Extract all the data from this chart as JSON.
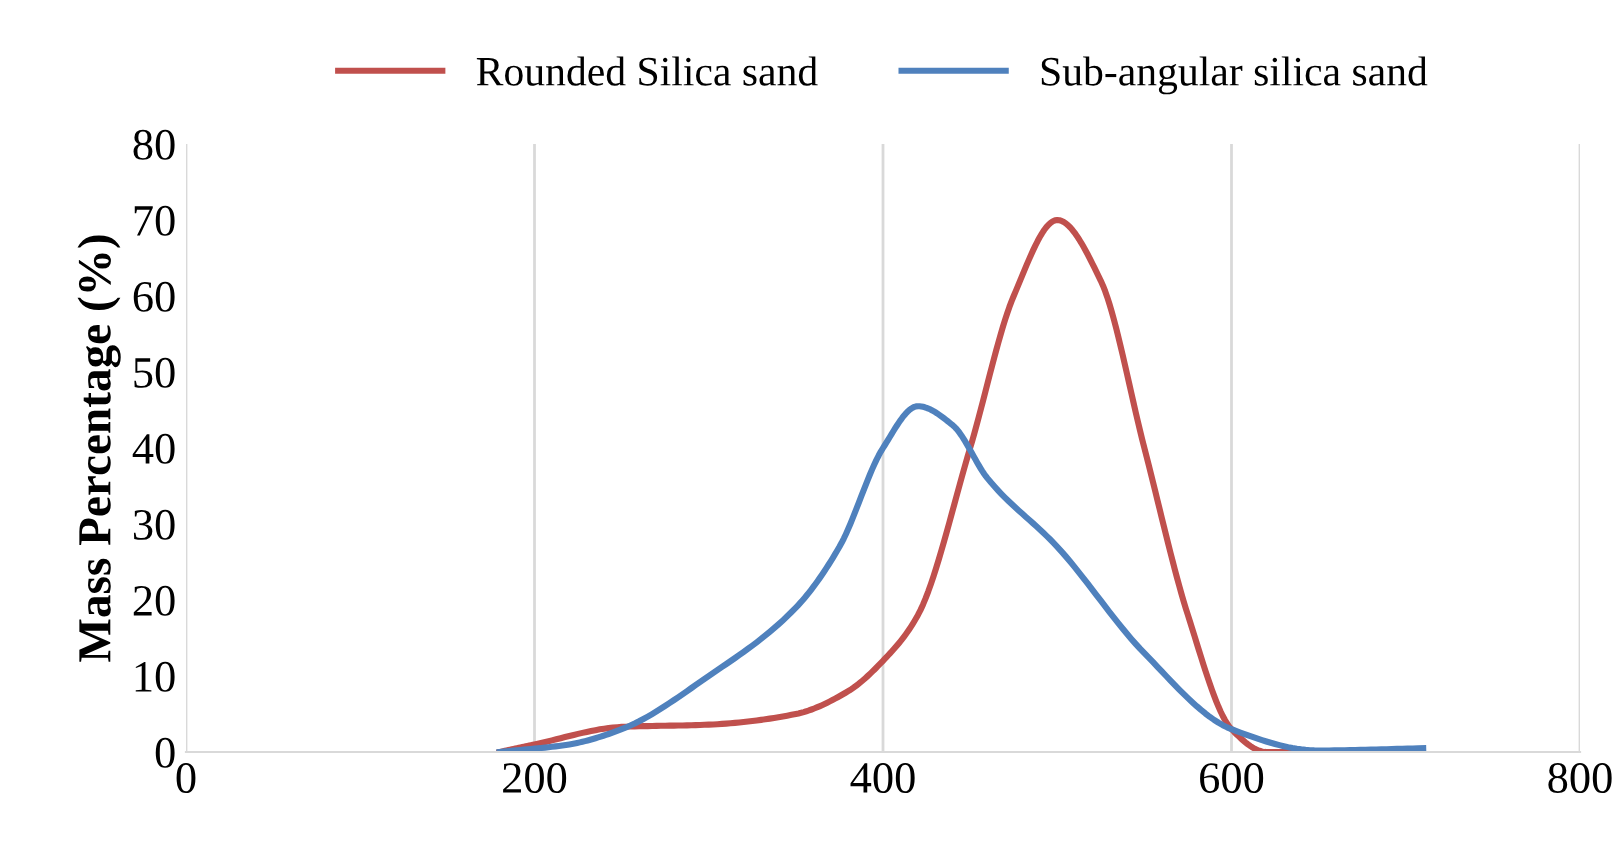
{
  "chart_data": {
    "type": "line",
    "ylabel": "Mass Percentage (%)",
    "xlim": [
      0,
      800
    ],
    "xticks": [
      0,
      200,
      400,
      600,
      800
    ],
    "ylim": [
      0,
      80
    ],
    "yticks": [
      0,
      10,
      20,
      30,
      40,
      50,
      60,
      70,
      80
    ],
    "grid": "x",
    "legend": "top",
    "marker": "none",
    "line_style": "solid",
    "series": [
      {
        "name": "Rounded Silica sand",
        "color": "#c0504d",
        "x": [
          180,
          200,
          250,
          300,
          350,
          380,
          400,
          420,
          450,
          475,
          500,
          525,
          550,
          575,
          600,
          620,
          650
        ],
        "values": [
          0,
          1,
          3.3,
          3.6,
          5,
          8,
          12,
          18,
          40,
          60,
          70,
          62,
          40,
          18,
          3,
          0,
          0
        ]
      },
      {
        "name": "Sub-angular silica sand",
        "color": "#4f81bd",
        "x": [
          180,
          220,
          250,
          300,
          350,
          375,
          400,
          420,
          440,
          460,
          500,
          550,
          600,
          650,
          710
        ],
        "values": [
          0,
          1,
          3,
          10,
          19,
          27,
          40,
          45.5,
          43,
          36,
          27,
          13,
          3,
          0.2,
          0.5
        ]
      }
    ]
  }
}
